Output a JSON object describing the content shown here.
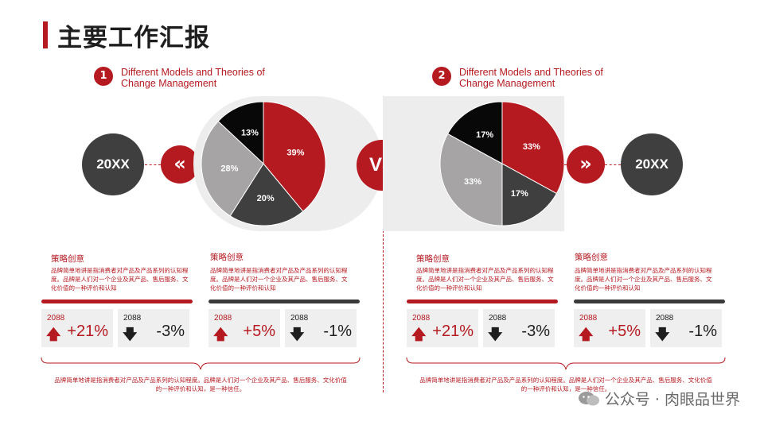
{
  "page_title": "主要工作汇报",
  "vs_label": "VS",
  "sections": [
    {
      "badge": "1",
      "title": "Different Models and Theories of\nChange Management",
      "year_label": "20XX",
      "chevron": "«",
      "pie": {
        "slices": [
          {
            "label": "39%",
            "value": 39,
            "color": "#b51a20"
          },
          {
            "label": "20%",
            "value": 20,
            "color": "#3f3f3f"
          },
          {
            "label": "28%",
            "value": 28,
            "color": "#a6a4a4"
          },
          {
            "label": "13%",
            "value": 13,
            "color": "#080808"
          }
        ]
      },
      "strategies": [
        {
          "title": "策略创意",
          "desc": "品牌简单地讲是指消费者对产品及产品系列的认知程度。品牌是人们对一个企业及其产品、售后服务、文化价值的一种评价和认知"
        },
        {
          "title": "策略创意",
          "desc": "品牌简单地讲是指消费者对产品及产品系列的认知程度。品牌是人们对一个企业及其产品、售后服务、文化价值的一种评价和认知"
        }
      ],
      "stats": [
        {
          "year": "2088",
          "arrow": "🡅",
          "value": "+21%"
        },
        {
          "year": "2088",
          "arrow": "🡇",
          "value": "-3%"
        },
        {
          "year": "2088",
          "arrow": "🡅",
          "value": "+5%"
        },
        {
          "year": "2088",
          "arrow": "🡇",
          "value": "-1%"
        }
      ],
      "brace_text": "品牌简单地讲是指消费者对产品及产品系列的认知程度。品牌是人们对一个企业及其产品、售后服务、文化价值的一种评价和认知，是一种信任。"
    },
    {
      "badge": "2",
      "title": "Different Models and Theories of\nChange Management",
      "year_label": "20XX",
      "chevron": "»",
      "pie": {
        "slices": [
          {
            "label": "33%",
            "value": 33,
            "color": "#b51a20"
          },
          {
            "label": "17%",
            "value": 17,
            "color": "#3f3f3f"
          },
          {
            "label": "33%",
            "value": 33,
            "color": "#a6a4a4"
          },
          {
            "label": "17%",
            "value": 17,
            "color": "#080808"
          }
        ]
      },
      "strategies": [
        {
          "title": "策略创意",
          "desc": "品牌简单地讲是指消费者对产品及产品系列的认知程度。品牌是人们对一个企业及其产品、售后服务、文化价值的一种评价和认知"
        },
        {
          "title": "策略创意",
          "desc": "品牌简单地讲是指消费者对产品及产品系列的认知程度。品牌是人们对一个企业及其产品、售后服务、文化价值的一种评价和认知"
        }
      ],
      "stats": [
        {
          "year": "2088",
          "arrow": "🡅",
          "value": "+21%"
        },
        {
          "year": "2088",
          "arrow": "🡇",
          "value": "-3%"
        },
        {
          "year": "2088",
          "arrow": "🡅",
          "value": "+5%"
        },
        {
          "year": "2088",
          "arrow": "🡇",
          "value": "-1%"
        }
      ],
      "brace_text": "品牌简单地讲是指消费者对产品及产品系列的认知程度。品牌是人们对一个企业及其产品、售后服务、文化价值的一种评价和认知，是一种信任。"
    }
  ],
  "watermark": "公众号 · 肉眼品世界"
}
